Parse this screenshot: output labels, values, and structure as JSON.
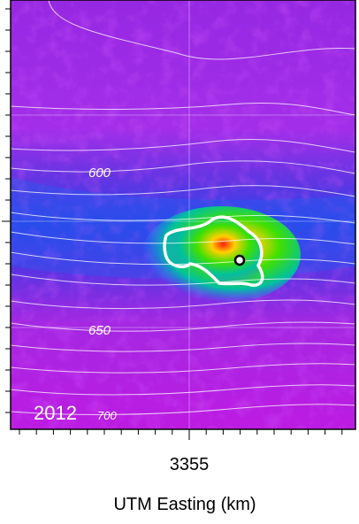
{
  "map": {
    "year": "2012",
    "contour_labels": [
      600,
      650,
      700
    ],
    "x_tick": "3355",
    "x_axis_label": "UTM Easting (km)"
  }
}
